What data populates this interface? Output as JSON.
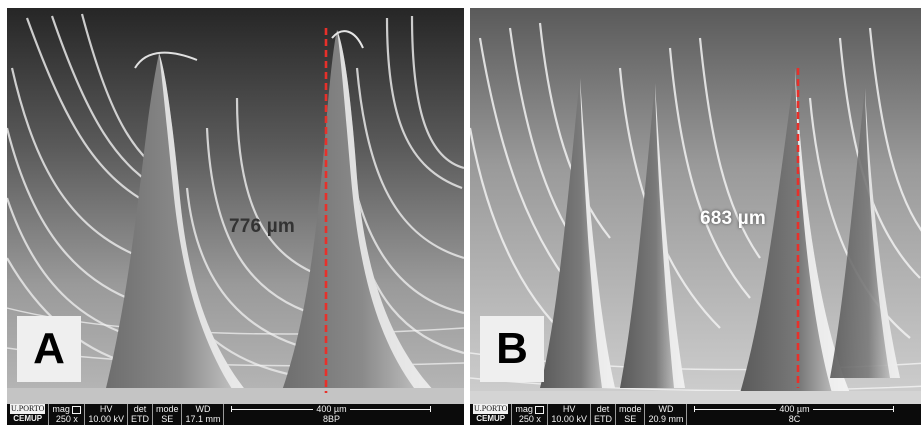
{
  "panels": [
    {
      "letter": "A",
      "height_label": "776 µm",
      "databar": {
        "logo_top": "U.PORTO",
        "logo_bottom": "CEMUP",
        "mag_label": "mag",
        "mag_value": "250 x",
        "hv_label": "HV",
        "hv_value": "10.00 kV",
        "det_label": "det",
        "det_value": "ETD",
        "mode_label": "mode",
        "mode_value": "SE",
        "wd_label": "WD",
        "wd_value": "17.1 mm",
        "scale_label": "400 µm",
        "sample_id": "8BP"
      }
    },
    {
      "letter": "B",
      "height_label": "683 µm",
      "databar": {
        "logo_top": "U.PORTO",
        "logo_bottom": "CEMUP",
        "mag_label": "mag",
        "mag_value": "250 x",
        "hv_label": "HV",
        "hv_value": "10.00 kV",
        "det_label": "det",
        "det_value": "ETD",
        "mode_label": "mode",
        "mode_value": "SE",
        "wd_label": "WD",
        "wd_value": "20.9 mm",
        "scale_label": "400 µm",
        "sample_id": "8C"
      }
    }
  ],
  "colors": {
    "measure_line": "#e8302a",
    "panel_letter_bg": "#efefef",
    "databar_bg": "#0b0b0b"
  }
}
